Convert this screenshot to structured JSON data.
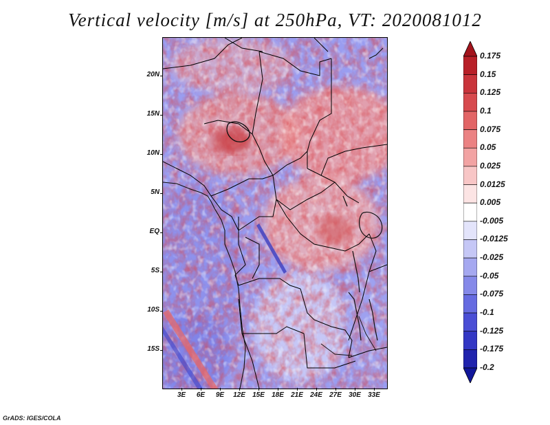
{
  "title": "Vertical velocity [m/s] at 250hPa, VT: 2020081012",
  "credit": "GrADS: IGES/COLA",
  "latitude_labels": [
    "20N",
    "15N",
    "10N",
    "5N",
    "EQ",
    "5S",
    "10S",
    "15S"
  ],
  "longitude_labels": [
    "3E",
    "6E",
    "9E",
    "12E",
    "15E",
    "18E",
    "21E",
    "24E",
    "27E",
    "30E",
    "33E"
  ],
  "colorbar": {
    "labels": [
      "0.175",
      "0.15",
      "0.125",
      "0.1",
      "0.075",
      "0.05",
      "0.025",
      "0.0125",
      "0.005",
      "-0.005",
      "-0.0125",
      "-0.025",
      "-0.05",
      "-0.075",
      "-0.1",
      "-0.125",
      "-0.175",
      "-0.2"
    ],
    "colors": [
      "#a3141c",
      "#b82028",
      "#c9343b",
      "#d74a4e",
      "#e26566",
      "#eb8283",
      "#f2a3a3",
      "#f8c6c6",
      "#fce4e4",
      "#ffffff",
      "#e3e4fb",
      "#c5c7f6",
      "#a5a8f0",
      "#8589e9",
      "#666be1",
      "#4a4ed5",
      "#3337c4",
      "#2023ad",
      "#11169a"
    ]
  }
}
